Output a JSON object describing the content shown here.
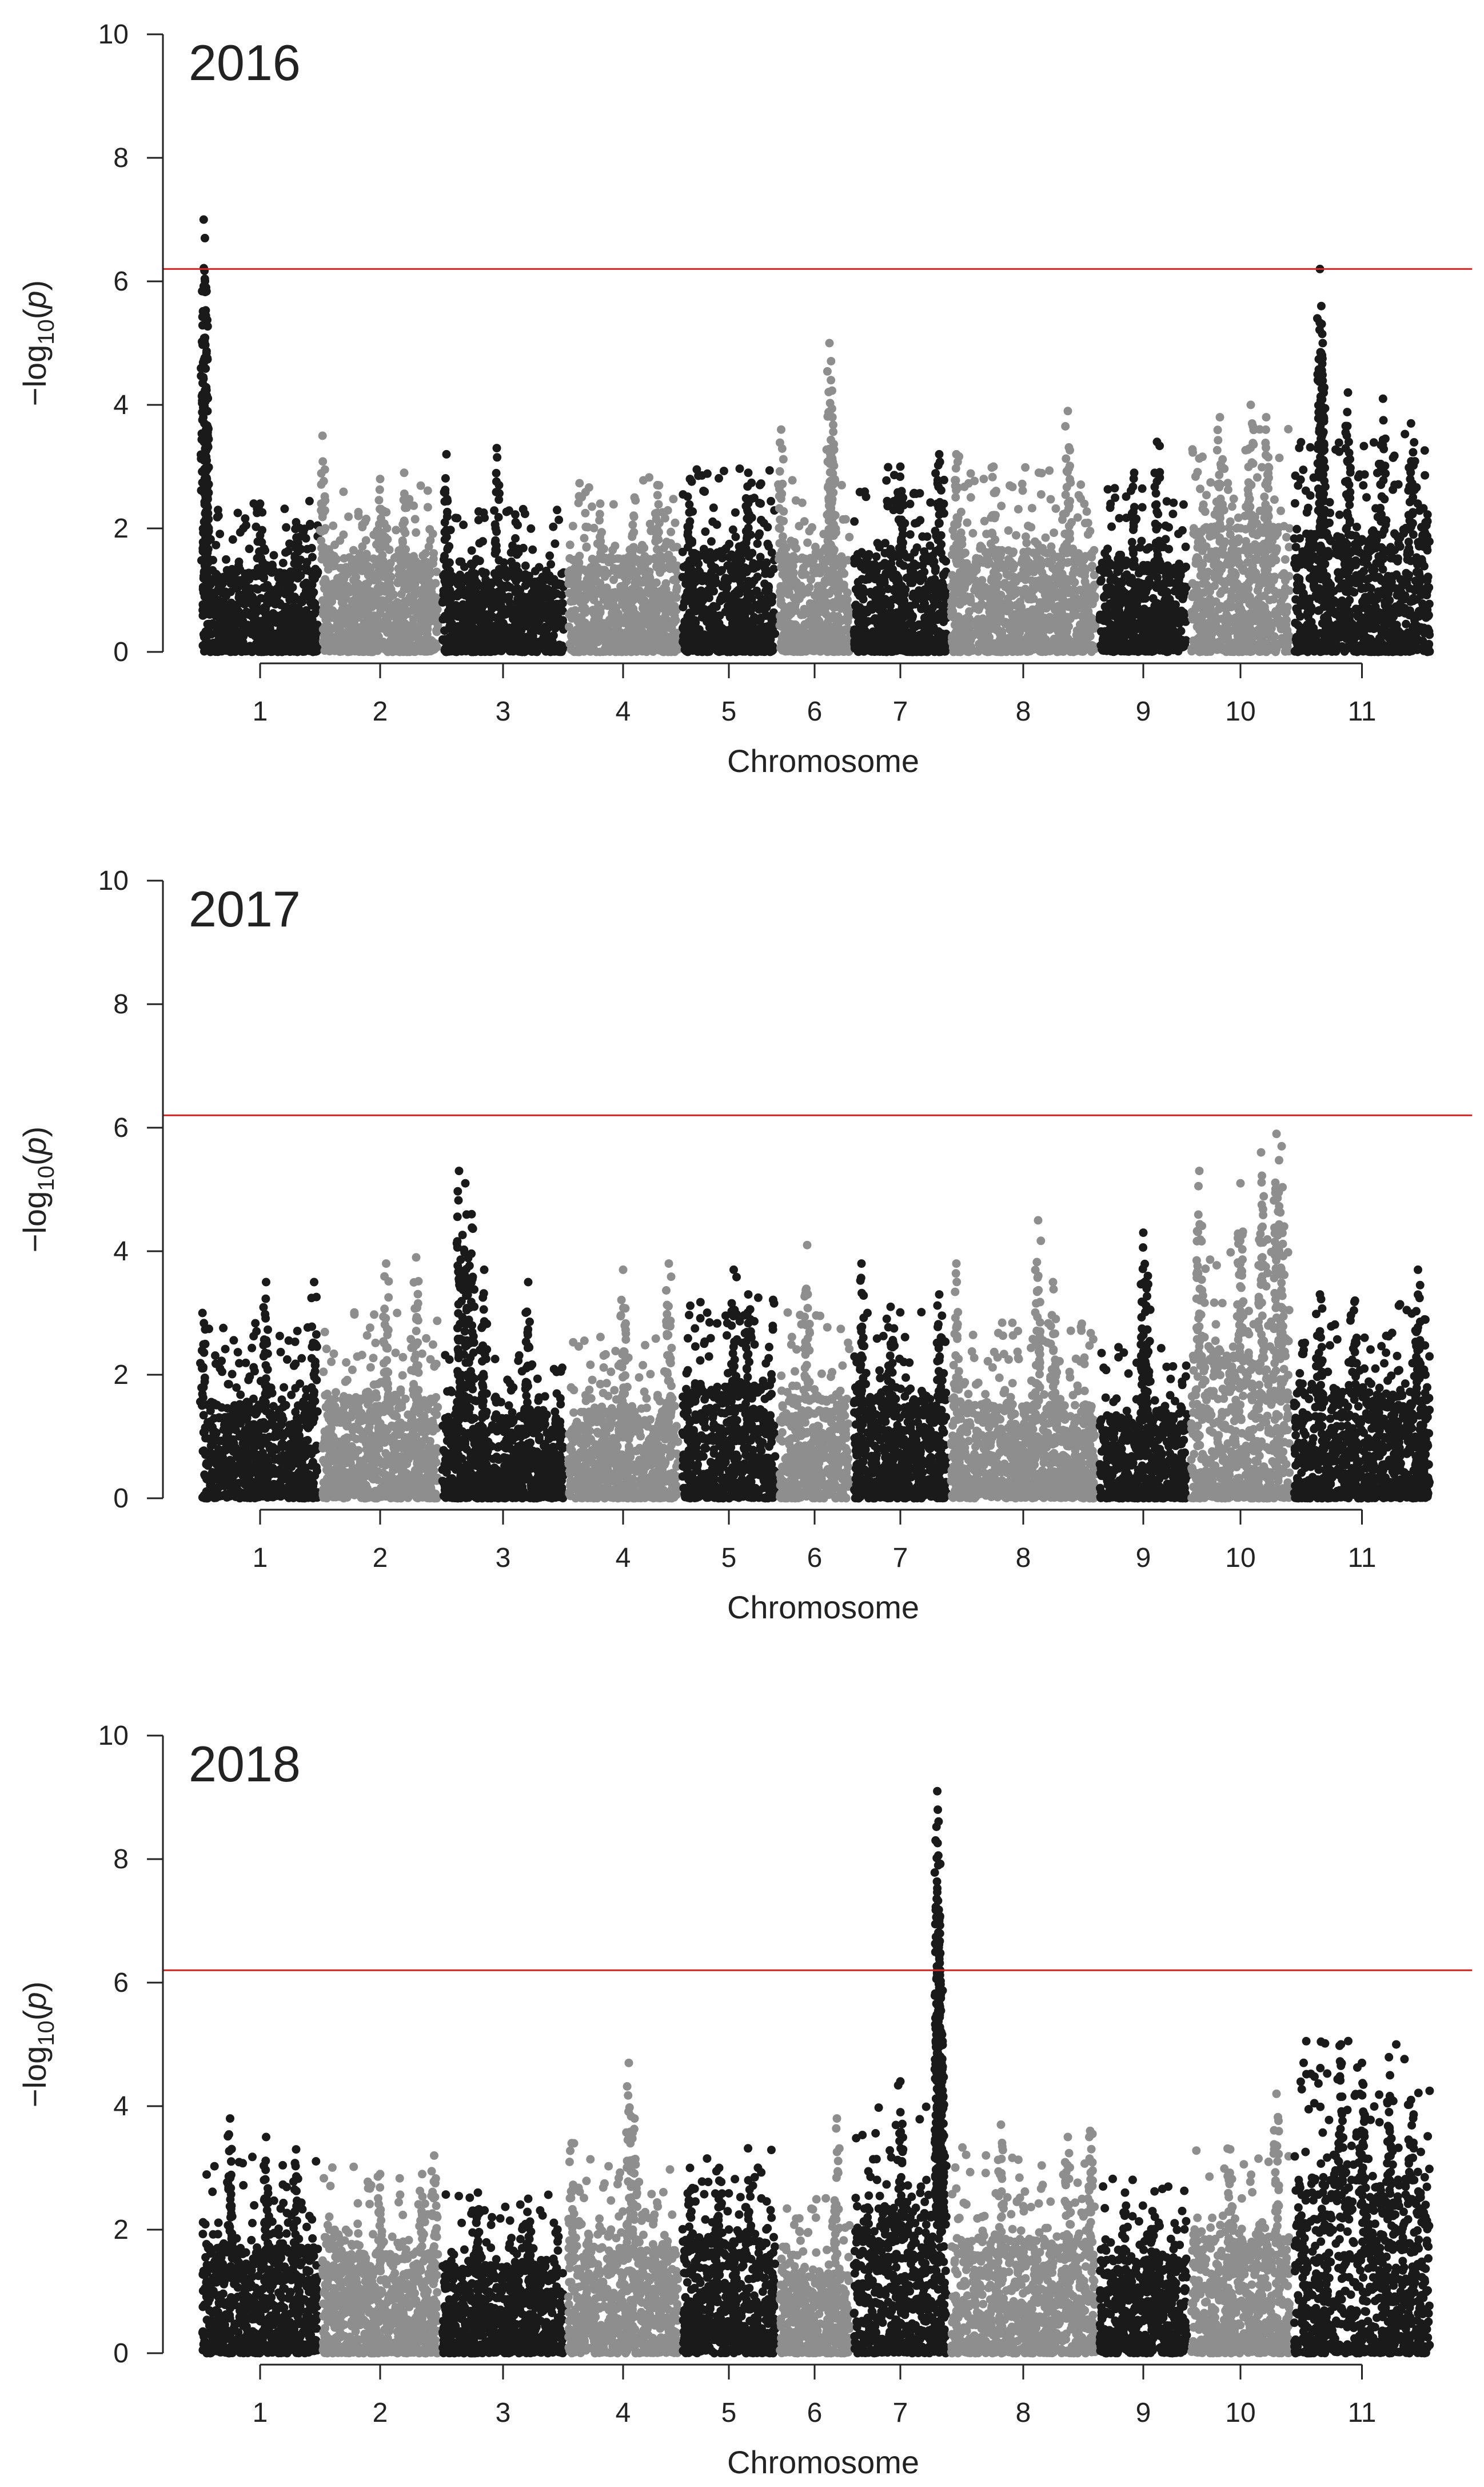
{
  "chart_data": [
    {
      "type": "scatter",
      "title": "2016",
      "xlabel": "Chromosome",
      "ylabel_html": "-log<sub>10</sub>(p)",
      "ylabel_parts": [
        "−log",
        "10",
        "(",
        "p",
        ")"
      ],
      "ylim": [
        0,
        10
      ],
      "yticks": [
        "0",
        "2",
        "4",
        "6",
        "8",
        "10"
      ],
      "categories": [
        "1",
        "2",
        "3",
        "4",
        "5",
        "6",
        "7",
        "8",
        "9",
        "10",
        "11"
      ],
      "threshold": 6.2,
      "colors": {
        "odd": "#1a1a1a",
        "even": "#8e8e8e",
        "threshold": "#d62728"
      },
      "chromosome_profiles": [
        {
          "chrom": "1",
          "baseline": 1.3,
          "peaks": [
            {
              "pos": 0.03,
              "value": 7.0
            },
            {
              "pos": 0.04,
              "value": 6.7
            },
            {
              "pos": 0.05,
              "value": 5.9
            },
            {
              "pos": 0.05,
              "value": 3.6
            },
            {
              "pos": 0.5,
              "value": 2.4
            },
            {
              "pos": 0.8,
              "value": 2.1
            }
          ]
        },
        {
          "chrom": "2",
          "baseline": 1.5,
          "peaks": [
            {
              "pos": 0.02,
              "value": 3.5
            },
            {
              "pos": 0.5,
              "value": 2.8
            },
            {
              "pos": 0.7,
              "value": 2.9
            }
          ]
        },
        {
          "chrom": "3",
          "baseline": 1.2,
          "peaks": [
            {
              "pos": 0.05,
              "value": 3.2
            },
            {
              "pos": 0.45,
              "value": 3.3
            },
            {
              "pos": 0.6,
              "value": 2.1
            }
          ]
        },
        {
          "chrom": "4",
          "baseline": 1.5,
          "peaks": [
            {
              "pos": 0.3,
              "value": 2.4
            },
            {
              "pos": 0.6,
              "value": 2.5
            },
            {
              "pos": 0.8,
              "value": 2.7
            }
          ]
        },
        {
          "chrom": "5",
          "baseline": 1.6,
          "peaks": [
            {
              "pos": 0.1,
              "value": 2.8
            },
            {
              "pos": 0.7,
              "value": 2.9
            }
          ]
        },
        {
          "chrom": "6",
          "baseline": 1.5,
          "peaks": [
            {
              "pos": 0.05,
              "value": 3.6
            },
            {
              "pos": 0.7,
              "value": 5.0
            },
            {
              "pos": 0.72,
              "value": 4.4
            },
            {
              "pos": 0.74,
              "value": 3.8
            }
          ]
        },
        {
          "chrom": "7",
          "baseline": 1.6,
          "peaks": [
            {
              "pos": 0.5,
              "value": 3.0
            },
            {
              "pos": 0.9,
              "value": 3.2
            }
          ]
        },
        {
          "chrom": "8",
          "baseline": 1.6,
          "peaks": [
            {
              "pos": 0.05,
              "value": 3.2
            },
            {
              "pos": 0.3,
              "value": 3.0
            },
            {
              "pos": 0.8,
              "value": 3.9
            }
          ]
        },
        {
          "chrom": "9",
          "baseline": 1.4,
          "peaks": [
            {
              "pos": 0.4,
              "value": 2.9
            },
            {
              "pos": 0.65,
              "value": 3.4
            }
          ]
        },
        {
          "chrom": "10",
          "baseline": 2.0,
          "peaks": [
            {
              "pos": 0.3,
              "value": 3.8
            },
            {
              "pos": 0.6,
              "value": 4.0
            },
            {
              "pos": 0.75,
              "value": 3.8
            }
          ]
        },
        {
          "chrom": "11",
          "baseline": 1.9,
          "peaks": [
            {
              "pos": 0.2,
              "value": 6.2
            },
            {
              "pos": 0.21,
              "value": 5.6
            },
            {
              "pos": 0.22,
              "value": 5.0
            },
            {
              "pos": 0.4,
              "value": 4.2
            },
            {
              "pos": 0.65,
              "value": 4.1
            },
            {
              "pos": 0.85,
              "value": 3.7
            }
          ]
        }
      ]
    },
    {
      "type": "scatter",
      "title": "2017",
      "xlabel": "Chromosome",
      "ylabel_parts": [
        "−log",
        "10",
        "(",
        "p",
        ")"
      ],
      "ylim": [
        0,
        10
      ],
      "yticks": [
        "0",
        "2",
        "4",
        "6",
        "8",
        "10"
      ],
      "categories": [
        "1",
        "2",
        "3",
        "4",
        "5",
        "6",
        "7",
        "8",
        "9",
        "10",
        "11"
      ],
      "threshold": 6.2,
      "colors": {
        "odd": "#1a1a1a",
        "even": "#8e8e8e",
        "threshold": "#d62728"
      },
      "chromosome_profiles": [
        {
          "chrom": "1",
          "baseline": 1.5,
          "peaks": [
            {
              "pos": 0.02,
              "value": 3.0
            },
            {
              "pos": 0.55,
              "value": 3.5
            },
            {
              "pos": 0.95,
              "value": 3.5
            }
          ]
        },
        {
          "chrom": "2",
          "baseline": 1.6,
          "peaks": [
            {
              "pos": 0.55,
              "value": 3.8
            },
            {
              "pos": 0.8,
              "value": 3.9
            }
          ]
        },
        {
          "chrom": "3",
          "baseline": 1.3,
          "peaks": [
            {
              "pos": 0.15,
              "value": 5.3
            },
            {
              "pos": 0.2,
              "value": 5.1
            },
            {
              "pos": 0.25,
              "value": 4.6
            },
            {
              "pos": 0.35,
              "value": 3.7
            },
            {
              "pos": 0.7,
              "value": 3.5
            }
          ]
        },
        {
          "chrom": "4",
          "baseline": 1.4,
          "peaks": [
            {
              "pos": 0.5,
              "value": 3.7
            },
            {
              "pos": 0.9,
              "value": 3.8
            }
          ]
        },
        {
          "chrom": "5",
          "baseline": 1.8,
          "peaks": [
            {
              "pos": 0.55,
              "value": 3.7
            },
            {
              "pos": 0.7,
              "value": 3.3
            }
          ]
        },
        {
          "chrom": "6",
          "baseline": 1.6,
          "peaks": [
            {
              "pos": 0.4,
              "value": 4.1
            }
          ]
        },
        {
          "chrom": "7",
          "baseline": 1.6,
          "peaks": [
            {
              "pos": 0.1,
              "value": 3.8
            },
            {
              "pos": 0.4,
              "value": 3.1
            },
            {
              "pos": 0.9,
              "value": 3.3
            }
          ]
        },
        {
          "chrom": "8",
          "baseline": 1.5,
          "peaks": [
            {
              "pos": 0.05,
              "value": 3.8
            },
            {
              "pos": 0.6,
              "value": 4.5
            },
            {
              "pos": 0.7,
              "value": 3.5
            }
          ]
        },
        {
          "chrom": "9",
          "baseline": 1.3,
          "peaks": [
            {
              "pos": 0.5,
              "value": 4.3
            },
            {
              "pos": 0.55,
              "value": 3.6
            }
          ]
        },
        {
          "chrom": "10",
          "baseline": 2.3,
          "peaks": [
            {
              "pos": 0.1,
              "value": 5.3
            },
            {
              "pos": 0.5,
              "value": 5.1
            },
            {
              "pos": 0.7,
              "value": 5.6
            },
            {
              "pos": 0.85,
              "value": 5.9
            },
            {
              "pos": 0.9,
              "value": 5.7
            }
          ]
        },
        {
          "chrom": "11",
          "baseline": 1.7,
          "peaks": [
            {
              "pos": 0.2,
              "value": 3.3
            },
            {
              "pos": 0.45,
              "value": 3.2
            },
            {
              "pos": 0.9,
              "value": 3.7
            }
          ]
        }
      ]
    },
    {
      "type": "scatter",
      "title": "2018",
      "xlabel": "Chromosome",
      "ylabel_parts": [
        "−log",
        "10",
        "(",
        "p",
        ")"
      ],
      "ylim": [
        0,
        10
      ],
      "yticks": [
        "0",
        "2",
        "4",
        "6",
        "8",
        "10"
      ],
      "categories": [
        "1",
        "2",
        "3",
        "4",
        "5",
        "6",
        "7",
        "8",
        "9",
        "10",
        "11"
      ],
      "threshold": 6.2,
      "colors": {
        "odd": "#1a1a1a",
        "even": "#8e8e8e",
        "threshold": "#d62728"
      },
      "chromosome_profiles": [
        {
          "chrom": "1",
          "baseline": 1.7,
          "peaks": [
            {
              "pos": 0.25,
              "value": 3.8
            },
            {
              "pos": 0.55,
              "value": 3.5
            },
            {
              "pos": 0.8,
              "value": 3.3
            }
          ]
        },
        {
          "chrom": "2",
          "baseline": 1.6,
          "peaks": [
            {
              "pos": 0.5,
              "value": 2.9
            },
            {
              "pos": 0.85,
              "value": 2.9
            },
            {
              "pos": 0.95,
              "value": 3.2
            }
          ]
        },
        {
          "chrom": "3",
          "baseline": 1.4,
          "peaks": [
            {
              "pos": 0.3,
              "value": 2.6
            },
            {
              "pos": 0.7,
              "value": 2.5
            }
          ]
        },
        {
          "chrom": "4",
          "baseline": 1.7,
          "peaks": [
            {
              "pos": 0.05,
              "value": 3.4
            },
            {
              "pos": 0.55,
              "value": 4.7
            },
            {
              "pos": 0.6,
              "value": 3.8
            }
          ]
        },
        {
          "chrom": "5",
          "baseline": 1.8,
          "peaks": [
            {
              "pos": 0.1,
              "value": 3.0
            },
            {
              "pos": 0.4,
              "value": 3.0
            },
            {
              "pos": 0.7,
              "value": 2.8
            }
          ]
        },
        {
          "chrom": "6",
          "baseline": 1.3,
          "peaks": [
            {
              "pos": 0.8,
              "value": 3.8
            }
          ]
        },
        {
          "chrom": "7",
          "baseline": 2.2,
          "peaks": [
            {
              "pos": 0.5,
              "value": 4.4
            },
            {
              "pos": 0.88,
              "value": 9.1
            },
            {
              "pos": 0.885,
              "value": 8.8
            },
            {
              "pos": 0.89,
              "value": 7.9
            },
            {
              "pos": 0.9,
              "value": 7.0
            },
            {
              "pos": 0.91,
              "value": 6.2
            },
            {
              "pos": 0.92,
              "value": 5.2
            },
            {
              "pos": 0.93,
              "value": 4.4
            }
          ]
        },
        {
          "chrom": "8",
          "baseline": 1.8,
          "peaks": [
            {
              "pos": 0.35,
              "value": 3.7
            },
            {
              "pos": 0.8,
              "value": 3.5
            },
            {
              "pos": 0.95,
              "value": 3.6
            }
          ]
        },
        {
          "chrom": "9",
          "baseline": 1.5,
          "peaks": [
            {
              "pos": 0.3,
              "value": 2.6
            },
            {
              "pos": 0.6,
              "value": 2.3
            }
          ]
        },
        {
          "chrom": "10",
          "baseline": 1.8,
          "peaks": [
            {
              "pos": 0.4,
              "value": 3.3
            },
            {
              "pos": 0.85,
              "value": 4.2
            }
          ]
        },
        {
          "chrom": "11",
          "baseline": 2.8,
          "peaks": [
            {
              "pos": 0.35,
              "value": 5.0
            },
            {
              "pos": 0.5,
              "value": 4.7
            },
            {
              "pos": 0.7,
              "value": 4.5
            },
            {
              "pos": 0.85,
              "value": 4.1
            }
          ]
        }
      ]
    }
  ]
}
